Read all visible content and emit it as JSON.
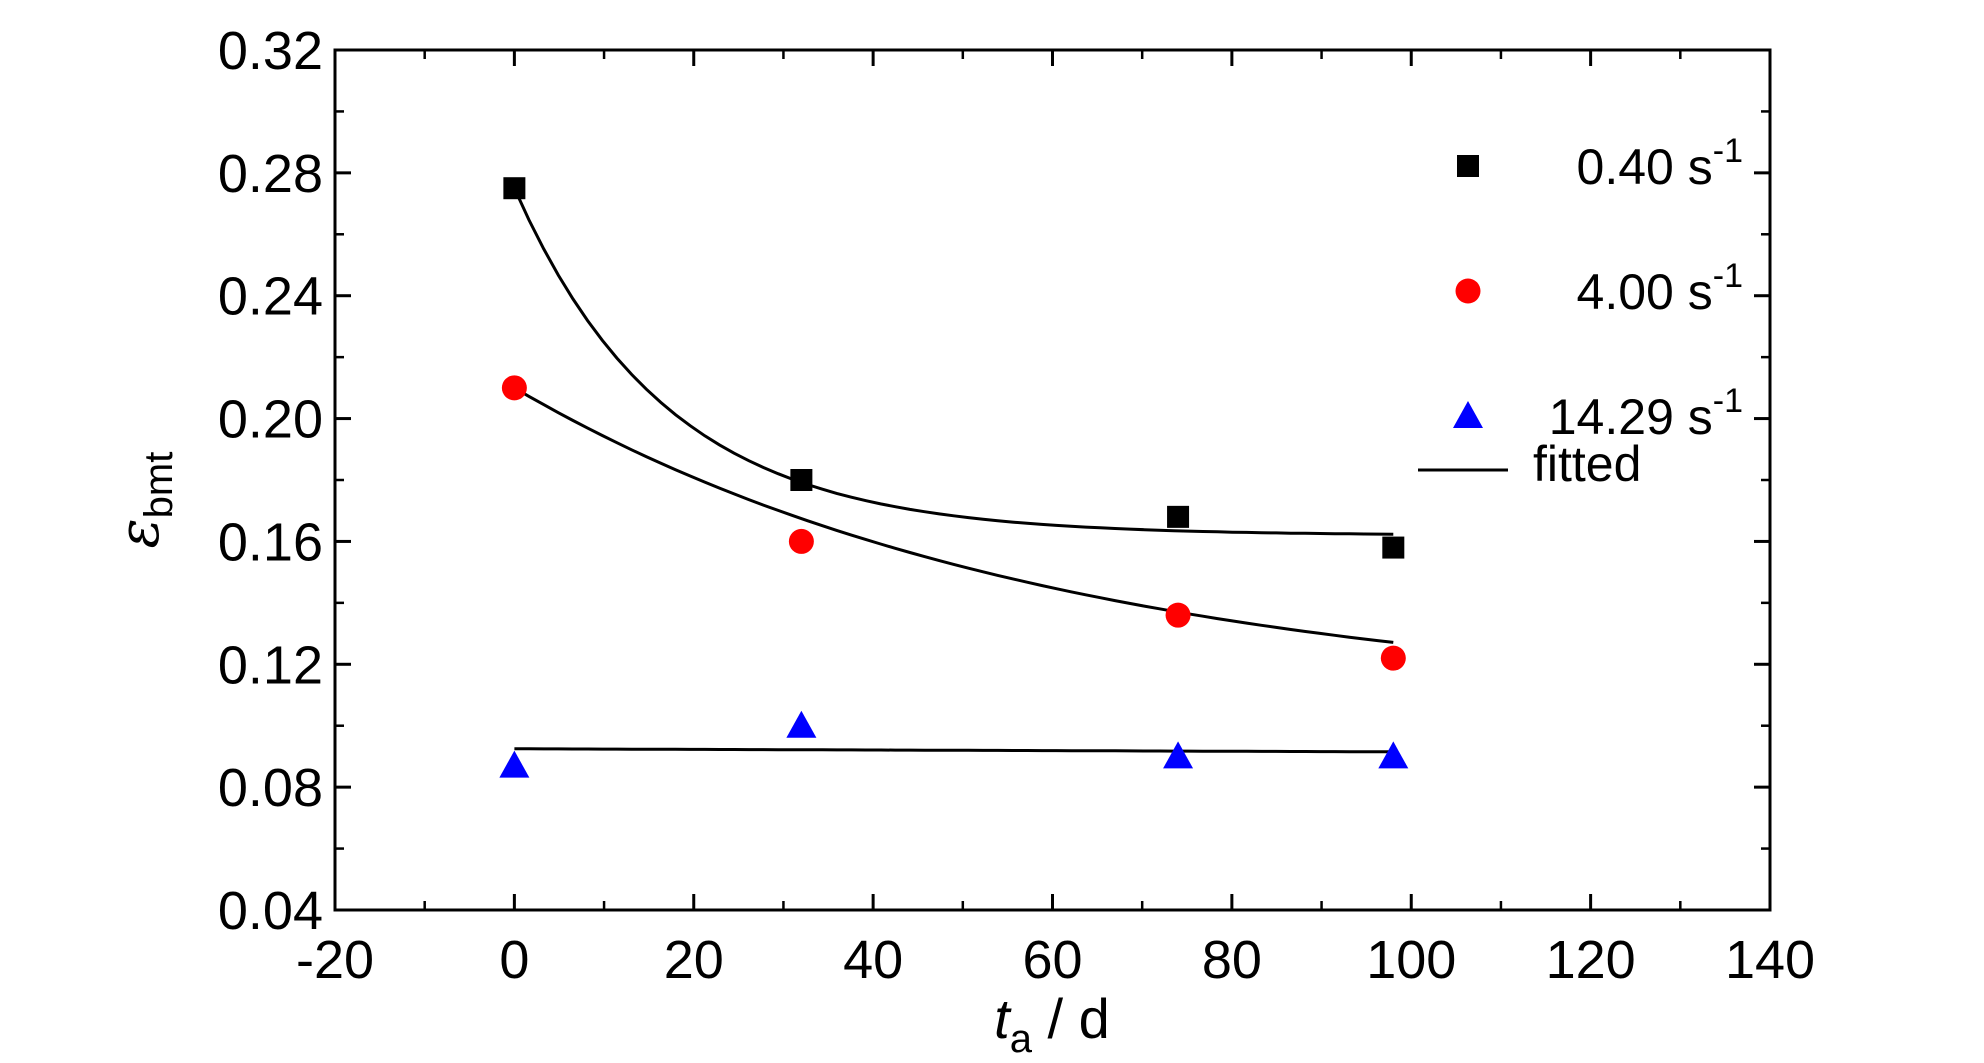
{
  "chart_data": {
    "type": "scatter",
    "xlabel": {
      "main": "t",
      "sub": "a",
      "unit": " / d"
    },
    "ylabel": {
      "main": "ε",
      "sub": "bmt"
    },
    "xlim": [
      -20,
      140
    ],
    "ylim": [
      0.04,
      0.32
    ],
    "x_ticks": [
      -20,
      0,
      20,
      40,
      60,
      80,
      100,
      120,
      140
    ],
    "y_ticks": [
      0.04,
      0.08,
      0.12,
      0.16,
      0.2,
      0.24,
      0.28,
      0.32
    ],
    "x_tick_labels": [
      "-20",
      "0",
      "20",
      "40",
      "60",
      "80",
      "100",
      "120",
      "140"
    ],
    "y_tick_labels": [
      "0.04",
      "0.08",
      "0.12",
      "0.16",
      "0.20",
      "0.24",
      "0.28",
      "0.32"
    ],
    "grid": false,
    "legend_position": "top-right",
    "series": [
      {
        "name": "0.40 s",
        "name_sup": "-1",
        "marker": "square",
        "color": "#000000",
        "x": [
          0,
          32,
          74,
          98
        ],
        "y": [
          0.275,
          0.18,
          0.168,
          0.158
        ],
        "fit": {
          "model": "exp",
          "a": 0.162,
          "b": 0.113,
          "tau": 17
        }
      },
      {
        "name": "4.00 s",
        "name_sup": "-1",
        "marker": "circle",
        "color": "#ff0000",
        "x": [
          0,
          32,
          74,
          98
        ],
        "y": [
          0.21,
          0.16,
          0.136,
          0.122
        ],
        "fit": {
          "model": "exp",
          "a": 0.107,
          "b": 0.103,
          "tau": 60
        }
      },
      {
        "name": "14.29 s",
        "name_sup": "-1",
        "marker": "triangle",
        "color": "#0000ff",
        "x": [
          0,
          32,
          74,
          98
        ],
        "y": [
          0.087,
          0.1,
          0.09,
          0.09
        ],
        "fit": {
          "model": "linear",
          "y0": 0.0925,
          "y1": 0.0915
        }
      }
    ],
    "fit_legend": "fitted",
    "fit_x_range": [
      0,
      98
    ]
  }
}
